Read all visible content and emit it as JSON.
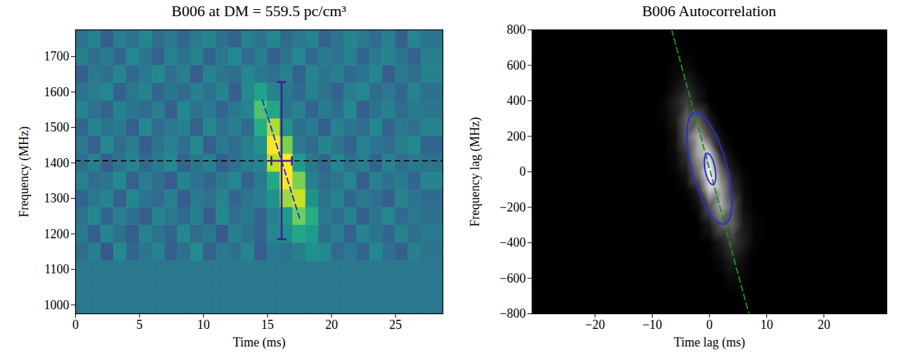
{
  "chart_data": [
    {
      "type": "heatmap",
      "title": "B006 at DM = 559.5 pc/cm³",
      "x_label": "Time (ms)",
      "y_label": "Frequency (MHz)",
      "xlim": [
        0,
        28.7
      ],
      "xticks": [
        0,
        5,
        10,
        15,
        20,
        25
      ],
      "ylim": [
        975,
        1775
      ],
      "yticks": [
        1000,
        1100,
        1200,
        1300,
        1400,
        1500,
        1600,
        1700
      ],
      "color": "viridis",
      "zlim": [
        0,
        1
      ],
      "x_edges": [
        0,
        1,
        2,
        3,
        4,
        5,
        6,
        7,
        8,
        9,
        10,
        11,
        12,
        13,
        14,
        15,
        16,
        17,
        18,
        19,
        20,
        21,
        22,
        23,
        24,
        25,
        26,
        27,
        28.7
      ],
      "y_edges": [
        975,
        1025,
        1075,
        1125,
        1175,
        1225,
        1275,
        1325,
        1375,
        1425,
        1475,
        1525,
        1575,
        1625,
        1675,
        1725,
        1775
      ],
      "values": [
        [
          0.4,
          0.4,
          0.4,
          0.4,
          0.4,
          0.4,
          0.4,
          0.4,
          0.4,
          0.4,
          0.4,
          0.4,
          0.4,
          0.4,
          0.4,
          0.4,
          0.4,
          0.4,
          0.4,
          0.4,
          0.4,
          0.4,
          0.4,
          0.4,
          0.4,
          0.4,
          0.4,
          0.4
        ],
        [
          0.4,
          0.4,
          0.4,
          0.4,
          0.4,
          0.4,
          0.4,
          0.4,
          0.4,
          0.4,
          0.4,
          0.4,
          0.4,
          0.4,
          0.4,
          0.4,
          0.4,
          0.4,
          0.4,
          0.4,
          0.4,
          0.4,
          0.4,
          0.4,
          0.4,
          0.4,
          0.4,
          0.4
        ],
        [
          0.4,
          0.4,
          0.4,
          0.4,
          0.4,
          0.4,
          0.4,
          0.4,
          0.4,
          0.4,
          0.4,
          0.4,
          0.4,
          0.4,
          0.4,
          0.4,
          0.4,
          0.4,
          0.4,
          0.4,
          0.4,
          0.4,
          0.4,
          0.4,
          0.4,
          0.4,
          0.4,
          0.4
        ],
        [
          0.35,
          0.42,
          0.28,
          0.47,
          0.33,
          0.39,
          0.44,
          0.3,
          0.36,
          0.48,
          0.31,
          0.4,
          0.37,
          0.45,
          0.29,
          0.41,
          0.38,
          0.43,
          0.5,
          0.47,
          0.34,
          0.4,
          0.32,
          0.46,
          0.37,
          0.3,
          0.43,
          0.39
        ],
        [
          0.41,
          0.3,
          0.45,
          0.36,
          0.29,
          0.44,
          0.38,
          0.33,
          0.47,
          0.35,
          0.4,
          0.28,
          0.43,
          0.37,
          0.32,
          0.46,
          0.48,
          0.6,
          0.55,
          0.36,
          0.42,
          0.31,
          0.45,
          0.38,
          0.33,
          0.44,
          0.36,
          0.41
        ],
        [
          0.38,
          0.46,
          0.33,
          0.42,
          0.37,
          0.3,
          0.45,
          0.4,
          0.34,
          0.43,
          0.29,
          0.47,
          0.36,
          0.41,
          0.33,
          0.44,
          0.55,
          0.78,
          0.62,
          0.4,
          0.35,
          0.43,
          0.3,
          0.39,
          0.46,
          0.34,
          0.4,
          0.37
        ],
        [
          0.32,
          0.4,
          0.44,
          0.3,
          0.46,
          0.38,
          0.35,
          0.43,
          0.29,
          0.41,
          0.37,
          0.45,
          0.33,
          0.39,
          0.42,
          0.5,
          0.85,
          0.92,
          0.5,
          0.38,
          0.44,
          0.33,
          0.41,
          0.36,
          0.3,
          0.45,
          0.39,
          0.34
        ],
        [
          0.44,
          0.35,
          0.39,
          0.47,
          0.31,
          0.42,
          0.36,
          0.29,
          0.45,
          0.38,
          0.33,
          0.4,
          0.46,
          0.32,
          0.41,
          0.6,
          1.0,
          0.8,
          0.42,
          0.35,
          0.39,
          0.46,
          0.3,
          0.43,
          0.37,
          0.41,
          0.33,
          0.45
        ],
        [
          0.36,
          0.43,
          0.3,
          0.38,
          0.45,
          0.34,
          0.41,
          0.47,
          0.32,
          0.39,
          0.44,
          0.3,
          0.37,
          0.42,
          0.45,
          0.9,
          1.0,
          0.55,
          0.4,
          0.33,
          0.46,
          0.37,
          0.42,
          0.31,
          0.44,
          0.36,
          0.4,
          0.38
        ],
        [
          0.4,
          0.31,
          0.46,
          0.35,
          0.42,
          0.29,
          0.38,
          0.44,
          0.36,
          0.47,
          0.3,
          0.41,
          0.35,
          0.43,
          0.5,
          1.0,
          0.8,
          0.4,
          0.34,
          0.45,
          0.38,
          0.31,
          0.44,
          0.39,
          0.35,
          0.42,
          0.47,
          0.32
        ],
        [
          0.33,
          0.45,
          0.38,
          0.41,
          0.3,
          0.47,
          0.35,
          0.4,
          0.43,
          0.31,
          0.46,
          0.37,
          0.42,
          0.34,
          0.62,
          0.88,
          0.5,
          0.36,
          0.41,
          0.3,
          0.43,
          0.39,
          0.35,
          0.46,
          0.32,
          0.4,
          0.37,
          0.44
        ],
        [
          0.45,
          0.37,
          0.32,
          0.44,
          0.39,
          0.35,
          0.42,
          0.3,
          0.46,
          0.38,
          0.41,
          0.33,
          0.4,
          0.45,
          0.72,
          0.6,
          0.38,
          0.44,
          0.32,
          0.41,
          0.36,
          0.47,
          0.3,
          0.38,
          0.43,
          0.35,
          0.41,
          0.39
        ],
        [
          0.38,
          0.42,
          0.46,
          0.31,
          0.4,
          0.44,
          0.33,
          0.39,
          0.35,
          0.43,
          0.37,
          0.45,
          0.3,
          0.48,
          0.58,
          0.45,
          0.4,
          0.34,
          0.43,
          0.38,
          0.31,
          0.42,
          0.46,
          0.35,
          0.4,
          0.33,
          0.44,
          0.37
        ],
        [
          0.3,
          0.4,
          0.37,
          0.45,
          0.34,
          0.41,
          0.47,
          0.36,
          0.42,
          0.3,
          0.44,
          0.39,
          0.35,
          0.46,
          0.4,
          0.37,
          0.43,
          0.31,
          0.45,
          0.38,
          0.42,
          0.34,
          0.39,
          0.45,
          0.3,
          0.41,
          0.36,
          0.43
        ],
        [
          0.43,
          0.36,
          0.41,
          0.33,
          0.46,
          0.39,
          0.31,
          0.44,
          0.38,
          0.45,
          0.32,
          0.4,
          0.47,
          0.35,
          0.42,
          0.3,
          0.39,
          0.46,
          0.34,
          0.41,
          0.37,
          0.44,
          0.33,
          0.4,
          0.45,
          0.38,
          0.31,
          0.42
        ],
        [
          0.37,
          0.44,
          0.3,
          0.42,
          0.38,
          0.46,
          0.35,
          0.4,
          0.33,
          0.41,
          0.45,
          0.36,
          0.31,
          0.43,
          0.39,
          0.46,
          0.34,
          0.4,
          0.44,
          0.32,
          0.38,
          0.45,
          0.41,
          0.35,
          0.43,
          0.3,
          0.46,
          0.39
        ]
      ],
      "hline": {
        "y": 1406,
        "color": "#000000",
        "line_style": "dashed"
      },
      "errorbar": {
        "x": 16.1,
        "y": 1406,
        "x_range": [
          15.3,
          16.9
        ],
        "y_range": [
          1185,
          1628
        ],
        "color": "#3f1d8c"
      },
      "lines": [
        {
          "x": [
            14.6,
            17.5
          ],
          "y": [
            1578,
            1245
          ],
          "color": "#1f2cff",
          "line_style": "dashed"
        }
      ]
    },
    {
      "type": "heatmap",
      "title": "B006 Autocorrelation",
      "x_label": "Time lag (ms)",
      "y_label": "Frequency lag (MHz)",
      "xlim": [
        -31,
        31
      ],
      "xticks": [
        -20,
        -10,
        0,
        10,
        20
      ],
      "ylim": [
        -800,
        800
      ],
      "yticks": [
        -800,
        -600,
        -400,
        -200,
        0,
        200,
        400,
        600,
        800
      ],
      "color": [
        "#000000",
        "#ffffff"
      ],
      "zlim": [
        0,
        1
      ],
      "x": [
        -28,
        -26,
        -24,
        -22,
        -20,
        -18,
        -16,
        -14,
        -12,
        -10,
        -8,
        -6,
        -4,
        -2,
        0,
        2,
        4,
        6,
        8,
        10,
        12,
        14,
        16,
        18,
        20,
        22,
        24,
        26,
        28
      ],
      "y": [
        -800,
        -700,
        -600,
        -500,
        -400,
        -300,
        -200,
        -100,
        0,
        100,
        200,
        300,
        400,
        500,
        600,
        700,
        800
      ],
      "values": [
        [
          0,
          0,
          0,
          0,
          0,
          0,
          0,
          0,
          0,
          0,
          0,
          0,
          0,
          0,
          0,
          0,
          0,
          0,
          0,
          0,
          0,
          0,
          0,
          0,
          0,
          0,
          0,
          0,
          0
        ],
        [
          0,
          0,
          0,
          0,
          0,
          0,
          0,
          0,
          0,
          0,
          0,
          0,
          0,
          0,
          0,
          0,
          0,
          0,
          0,
          0,
          0,
          0,
          0,
          0,
          0,
          0,
          0,
          0,
          0
        ],
        [
          0,
          0,
          0,
          0,
          0,
          0,
          0,
          0,
          0,
          0,
          0,
          0,
          0,
          0,
          0,
          0,
          0.04,
          0.03,
          0,
          0,
          0,
          0,
          0,
          0,
          0,
          0,
          0,
          0,
          0
        ],
        [
          0,
          0,
          0,
          0,
          0,
          0,
          0,
          0,
          0,
          0,
          0,
          0,
          0,
          0,
          0,
          0.04,
          0.12,
          0.05,
          0,
          0,
          0,
          0,
          0,
          0,
          0,
          0,
          0,
          0,
          0
        ],
        [
          0,
          0,
          0,
          0,
          0,
          0,
          0,
          0,
          0,
          0,
          0,
          0,
          0,
          0,
          0,
          0.1,
          0.24,
          0.12,
          0.02,
          0,
          0,
          0,
          0,
          0,
          0,
          0,
          0,
          0,
          0
        ],
        [
          0,
          0,
          0,
          0,
          0,
          0,
          0,
          0,
          0,
          0,
          0,
          0,
          0,
          0,
          0.1,
          0.35,
          0.38,
          0.1,
          0.02,
          0,
          0,
          0,
          0,
          0,
          0,
          0,
          0,
          0,
          0
        ],
        [
          0,
          0,
          0,
          0,
          0,
          0,
          0,
          0,
          0,
          0,
          0,
          0,
          0,
          0.05,
          0.3,
          0.68,
          0.35,
          0.06,
          0,
          0,
          0,
          0,
          0,
          0,
          0,
          0,
          0,
          0,
          0
        ],
        [
          0,
          0,
          0,
          0,
          0,
          0,
          0,
          0,
          0,
          0,
          0,
          0,
          0.03,
          0.15,
          0.8,
          0.65,
          0.2,
          0.04,
          0,
          0,
          0,
          0,
          0,
          0,
          0,
          0,
          0,
          0,
          0
        ],
        [
          0,
          0,
          0,
          0,
          0,
          0,
          0,
          0,
          0,
          0,
          0,
          0.02,
          0.1,
          0.45,
          1,
          0.45,
          0.1,
          0.02,
          0,
          0,
          0,
          0,
          0,
          0,
          0,
          0,
          0,
          0,
          0
        ],
        [
          0,
          0,
          0,
          0,
          0,
          0,
          0,
          0,
          0,
          0,
          0,
          0.04,
          0.2,
          0.65,
          0.8,
          0.15,
          0.03,
          0,
          0,
          0,
          0,
          0,
          0,
          0,
          0,
          0,
          0,
          0,
          0
        ],
        [
          0,
          0,
          0,
          0,
          0,
          0,
          0,
          0,
          0,
          0,
          0,
          0.06,
          0.35,
          0.68,
          0.3,
          0.05,
          0,
          0,
          0,
          0,
          0,
          0,
          0,
          0,
          0,
          0,
          0,
          0,
          0
        ],
        [
          0,
          0,
          0,
          0,
          0,
          0,
          0,
          0,
          0,
          0,
          0.02,
          0.1,
          0.38,
          0.35,
          0.1,
          0,
          0,
          0,
          0,
          0,
          0,
          0,
          0,
          0,
          0,
          0,
          0,
          0,
          0
        ],
        [
          0,
          0,
          0,
          0,
          0,
          0,
          0,
          0,
          0,
          0,
          0.02,
          0.12,
          0.24,
          0.1,
          0,
          0,
          0,
          0,
          0,
          0,
          0,
          0,
          0,
          0,
          0,
          0,
          0,
          0,
          0
        ],
        [
          0,
          0,
          0,
          0,
          0,
          0,
          0,
          0,
          0,
          0,
          0,
          0.05,
          0.12,
          0.04,
          0,
          0,
          0,
          0,
          0,
          0,
          0,
          0,
          0,
          0,
          0,
          0,
          0,
          0,
          0
        ],
        [
          0,
          0,
          0,
          0,
          0,
          0,
          0,
          0,
          0,
          0,
          0,
          0.03,
          0.04,
          0,
          0,
          0,
          0,
          0,
          0,
          0,
          0,
          0,
          0,
          0,
          0,
          0,
          0,
          0,
          0
        ],
        [
          0,
          0,
          0,
          0,
          0,
          0,
          0,
          0,
          0,
          0,
          0,
          0,
          0,
          0,
          0,
          0,
          0,
          0,
          0,
          0,
          0,
          0,
          0,
          0,
          0,
          0,
          0,
          0,
          0
        ],
        [
          0,
          0,
          0,
          0,
          0,
          0,
          0,
          0,
          0,
          0,
          0,
          0,
          0,
          0,
          0,
          0,
          0,
          0,
          0,
          0,
          0,
          0,
          0,
          0,
          0,
          0,
          0,
          0,
          0
        ]
      ],
      "ellipses": [
        {
          "cx": 0,
          "cy": 20,
          "x_half_width": 3.95,
          "y_half_height": 315,
          "correlation": -0.6,
          "color": "#2b2bd9"
        },
        {
          "cx": 0.1,
          "cy": 16,
          "x_half_width": 1.0,
          "y_half_height": 88,
          "correlation": -0.45,
          "color": "#2b2bd9"
        }
      ],
      "lines": [
        {
          "x": [
            -6.6,
            6.9
          ],
          "y": [
            800,
            -800
          ],
          "color": "#1e8c1e",
          "line_style": "dashed"
        }
      ]
    }
  ]
}
